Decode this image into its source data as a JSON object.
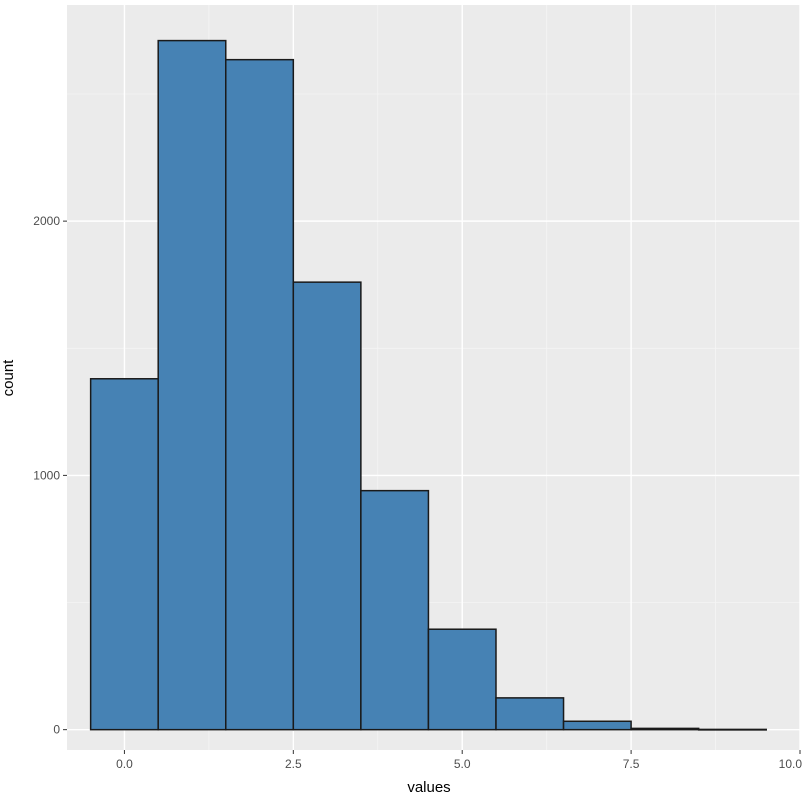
{
  "chart_data": {
    "type": "bar",
    "title": "",
    "xlabel": "values",
    "ylabel": "count",
    "xlim": [
      -0.85,
      10.0
    ],
    "ylim": [
      -80,
      2850
    ],
    "xticks": [
      0,
      2.5,
      5,
      7.5,
      10
    ],
    "xtick_labels": [
      "0.0",
      "2.5",
      "5.0",
      "7.5",
      "10.0"
    ],
    "yticks": [
      0,
      1000,
      2000
    ],
    "ytick_labels": [
      "0",
      "1000",
      "2000"
    ],
    "bin_width": 1,
    "bins": [
      {
        "x": 0,
        "count": 1380
      },
      {
        "x": 1,
        "count": 2710
      },
      {
        "x": 2,
        "count": 2635
      },
      {
        "x": 3,
        "count": 1760
      },
      {
        "x": 4,
        "count": 940
      },
      {
        "x": 5,
        "count": 395
      },
      {
        "x": 6,
        "count": 125
      },
      {
        "x": 7,
        "count": 33
      },
      {
        "x": 8,
        "count": 5
      },
      {
        "x": 9,
        "count": 1
      }
    ],
    "grid": true,
    "legend": "none",
    "colors": {
      "fill": "#4682B4",
      "outline": "#1A1A1A",
      "panel": "#EBEBEB",
      "grid_major": "#FFFFFF",
      "grid_minor": "#F5F5F5"
    }
  }
}
